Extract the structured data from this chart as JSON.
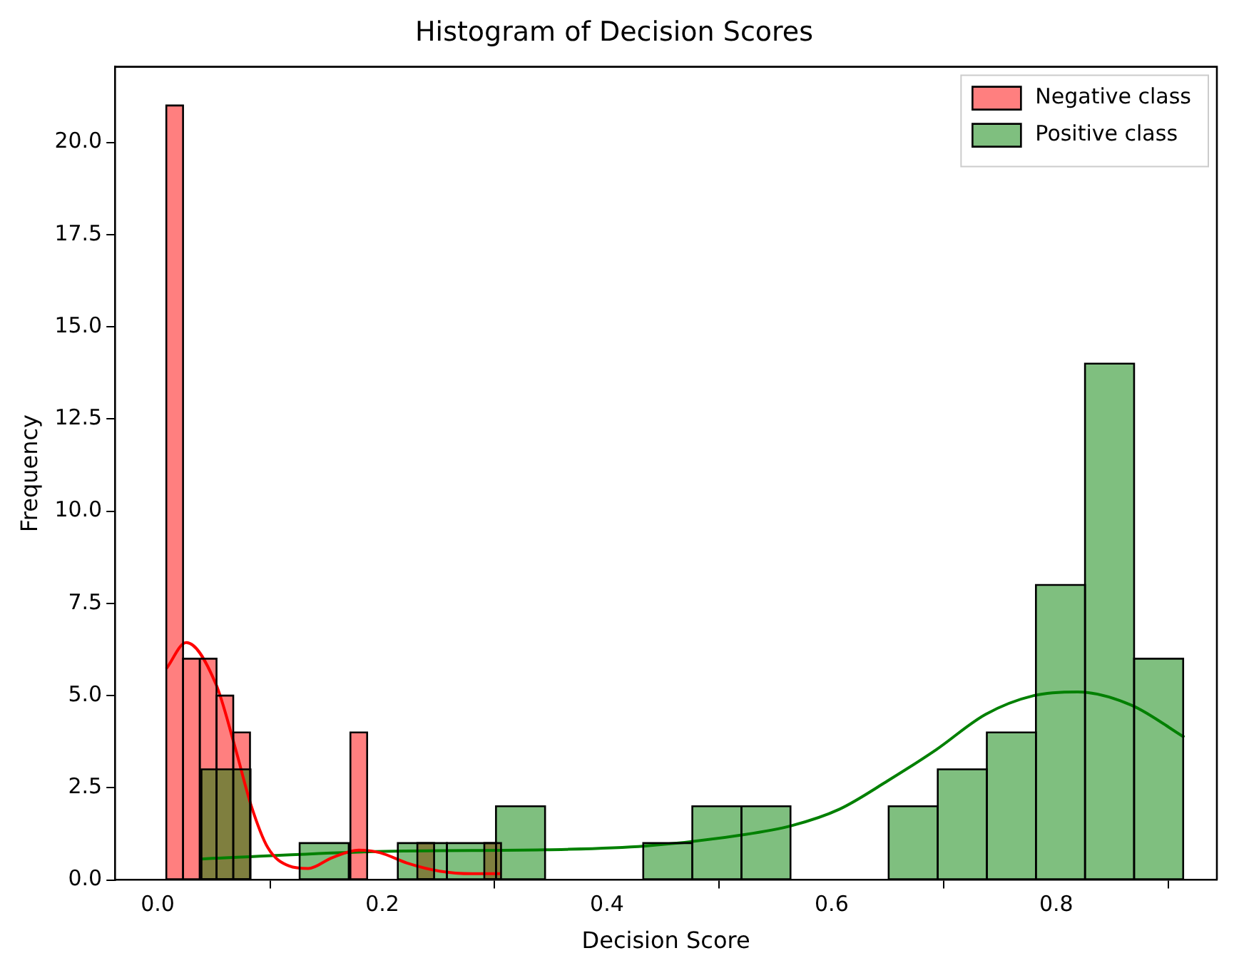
{
  "chart_data": {
    "type": "histogram",
    "title": "Histogram of Decision Scores",
    "xlabel": "Decision Score",
    "ylabel": "Frequency",
    "xlim": [
      -0.038,
      0.943
    ],
    "ylim": [
      0,
      22.05
    ],
    "xticks": [
      {
        "value": 0,
        "label": "0.0"
      },
      {
        "value": 0.2,
        "label": "0.2"
      },
      {
        "value": 0.4,
        "label": "0.4"
      },
      {
        "value": 0.6,
        "label": "0.6"
      },
      {
        "value": 0.8,
        "label": "0.8"
      }
    ],
    "yticks": [
      {
        "value": 0,
        "label": "0.0"
      },
      {
        "value": 2.5,
        "label": "2.5"
      },
      {
        "value": 5,
        "label": "5.0"
      },
      {
        "value": 7.5,
        "label": "7.5"
      },
      {
        "value": 10,
        "label": "10.0"
      },
      {
        "value": 12.5,
        "label": "12.5"
      },
      {
        "value": 15,
        "label": "15.0"
      },
      {
        "value": 17.5,
        "label": "17.5"
      },
      {
        "value": 20,
        "label": "20.0"
      }
    ],
    "grid": false,
    "legend": "top right",
    "series": [
      {
        "name": "Negative class",
        "color": "#ff0000",
        "bins": [
          0.0077,
          0.0226,
          0.0375,
          0.0524,
          0.0673,
          0.0822,
          0.0971,
          0.112,
          0.1269,
          0.1418,
          0.1567,
          0.1716,
          0.1865,
          0.2014,
          0.2163,
          0.2312,
          0.2461,
          0.261,
          0.2759,
          0.2908,
          0.3057
        ],
        "values": [
          21,
          6,
          6,
          5,
          4,
          0,
          0,
          0,
          0,
          0,
          0,
          4,
          0,
          0,
          0,
          1,
          0,
          0,
          0,
          1
        ]
      },
      {
        "name": "Positive class",
        "color": "#008000",
        "bins": [
          0.039,
          0.0827,
          0.1264,
          0.1701,
          0.2138,
          0.2575,
          0.3012,
          0.3449,
          0.3886,
          0.4323,
          0.476,
          0.5197,
          0.5634,
          0.6071,
          0.6508,
          0.6945,
          0.7382,
          0.7819,
          0.8256,
          0.8693,
          0.913
        ],
        "values": [
          3,
          0,
          1,
          0,
          1,
          1,
          2,
          0,
          0,
          1,
          2,
          2,
          0,
          0,
          2,
          3,
          4,
          8,
          14,
          6
        ]
      },
      {
        "type": "line",
        "color": "#ff0000",
        "x": [
          0.0077,
          0.0255,
          0.052,
          0.069,
          0.083,
          0.098,
          0.117,
          0.134,
          0.155,
          0.179,
          0.198,
          0.222,
          0.251,
          0.28,
          0.306
        ],
        "values": [
          5.73,
          6.44,
          5.3,
          3.59,
          2.04,
          0.88,
          0.38,
          0.31,
          0.6,
          0.81,
          0.74,
          0.46,
          0.24,
          0.17,
          0.17
        ]
      },
      {
        "type": "line",
        "color": "#008000",
        "x": [
          0.039,
          0.194,
          0.3636,
          0.434,
          0.52,
          0.564,
          0.607,
          0.65,
          0.693,
          0.737,
          0.78,
          0.819,
          0.867,
          0.914
        ],
        "values": [
          0.57,
          0.77,
          0.83,
          0.92,
          1.22,
          1.47,
          1.92,
          2.69,
          3.53,
          4.49,
          5.0,
          5.1,
          4.74,
          3.87
        ]
      }
    ]
  }
}
